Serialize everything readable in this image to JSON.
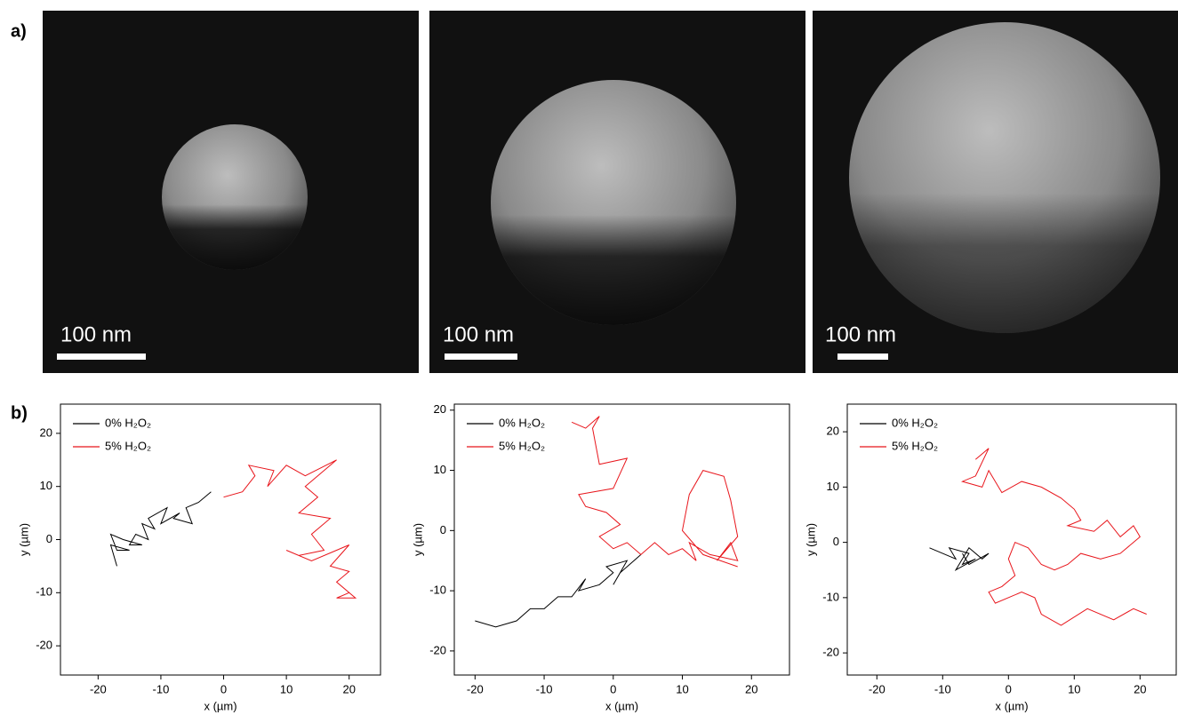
{
  "panel_labels": [
    "a)",
    "b)"
  ],
  "scale_bars": [
    "100 nm",
    "100 nm",
    "100 nm"
  ],
  "chart_data": [
    {
      "type": "line",
      "x_label": "x (µm)",
      "y_label": "y (µm)",
      "xlim": [
        -26,
        25
      ],
      "ylim": [
        -25.5,
        25.5
      ],
      "xticks": [
        -20,
        -10,
        0,
        10,
        20
      ],
      "yticks": [
        -20,
        -10,
        0,
        10,
        20
      ],
      "series": [
        {
          "name": "0% H₂O₂",
          "color": "#000000",
          "x": [
            -2,
            -4,
            -6,
            -5,
            -8,
            -7,
            -10,
            -9,
            -12,
            -11,
            -13,
            -12,
            -14,
            -15,
            -13,
            -16,
            -18,
            -17,
            -15,
            -18,
            -17
          ],
          "values": [
            9,
            7,
            6,
            3,
            4,
            5,
            3,
            6,
            4,
            2,
            3,
            0,
            1,
            -1,
            -1,
            0,
            1,
            -2,
            -2,
            -1,
            -5
          ]
        },
        {
          "name": "5% H₂O₂",
          "color": "#e8151b",
          "x": [
            0,
            3,
            5,
            4,
            8,
            7,
            10,
            13,
            18,
            13,
            15,
            12,
            17,
            14,
            16,
            12,
            10,
            14,
            18,
            20,
            17,
            20,
            18,
            21,
            18,
            20
          ],
          "values": [
            8,
            9,
            12,
            14,
            13,
            10,
            14,
            12,
            15,
            10,
            8,
            5,
            4,
            1,
            -2,
            -3,
            -2,
            -4,
            -2,
            -1,
            -5,
            -6,
            -8,
            -11,
            -11,
            -10
          ]
        }
      ]
    },
    {
      "type": "line",
      "x_label": "x (µm)",
      "y_label": "y (µm)",
      "xlim": [
        -23,
        25.5
      ],
      "ylim": [
        -24,
        21
      ],
      "xticks": [
        -20,
        -10,
        0,
        10,
        20
      ],
      "yticks": [
        -20,
        -10,
        0,
        10,
        20
      ],
      "series": [
        {
          "name": "0% H₂O₂",
          "color": "#000000",
          "x": [
            -20,
            -17,
            -14,
            -12,
            -10,
            -8,
            -6,
            -4,
            -5,
            -2,
            0,
            -1,
            2,
            0,
            1,
            4
          ],
          "values": [
            -15,
            -16,
            -15,
            -13,
            -13,
            -11,
            -11,
            -8,
            -10,
            -9,
            -7,
            -6,
            -5,
            -9,
            -7,
            -4
          ]
        },
        {
          "name": "5% H₂O₂",
          "color": "#e8151b",
          "x": [
            -6,
            -4,
            -2,
            -3,
            -2,
            2,
            0,
            -5,
            -4,
            -1,
            1,
            -2,
            0,
            2,
            4,
            6,
            8,
            10,
            12,
            11,
            14,
            18,
            17,
            15,
            18,
            17,
            16,
            13,
            11,
            10,
            13,
            18
          ],
          "values": [
            18,
            17,
            19,
            17,
            11,
            12,
            7,
            6,
            4,
            3,
            1,
            -1,
            -3,
            -2,
            -4,
            -2,
            -4,
            -3,
            -5,
            -2,
            -4,
            -5,
            -2,
            -5,
            -1,
            5,
            9,
            10,
            6,
            0,
            -4,
            -6
          ]
        }
      ]
    },
    {
      "type": "line",
      "x_label": "x (µm)",
      "y_label": "y (µm)",
      "xlim": [
        -24.5,
        25.5
      ],
      "ylim": [
        -24,
        25
      ],
      "xticks": [
        -20,
        -10,
        0,
        10,
        20
      ],
      "yticks": [
        -20,
        -10,
        0,
        10,
        20
      ],
      "series": [
        {
          "name": "0% H₂O₂",
          "color": "#000000",
          "x": [
            -12,
            -10,
            -8,
            -9,
            -6,
            -7,
            -5,
            -8,
            -6,
            -4,
            -3,
            -6,
            -7
          ],
          "values": [
            -1,
            -2,
            -3,
            -1,
            -2,
            -4,
            -3,
            -5,
            -1,
            -3,
            -2,
            -4,
            -2
          ]
        },
        {
          "name": "5% H₂O₂",
          "color": "#e8151b",
          "x": [
            -5,
            -3,
            -5,
            -7,
            -4,
            -3,
            -1,
            2,
            5,
            8,
            10,
            11,
            9,
            13,
            15,
            17,
            19,
            20,
            17,
            14,
            11,
            9,
            7,
            5,
            3,
            1,
            0,
            1,
            -1,
            -3,
            -2,
            2,
            4,
            5,
            8,
            12,
            16,
            19,
            21
          ],
          "values": [
            15,
            17,
            12,
            11,
            10,
            13,
            9,
            11,
            10,
            8,
            6,
            4,
            3,
            2,
            4,
            1,
            3,
            1,
            -2,
            -3,
            -2,
            -4,
            -5,
            -4,
            -1,
            0,
            -3,
            -6,
            -8,
            -9,
            -11,
            -9,
            -10,
            -13,
            -15,
            -12,
            -14,
            -12,
            -13
          ]
        }
      ]
    }
  ]
}
